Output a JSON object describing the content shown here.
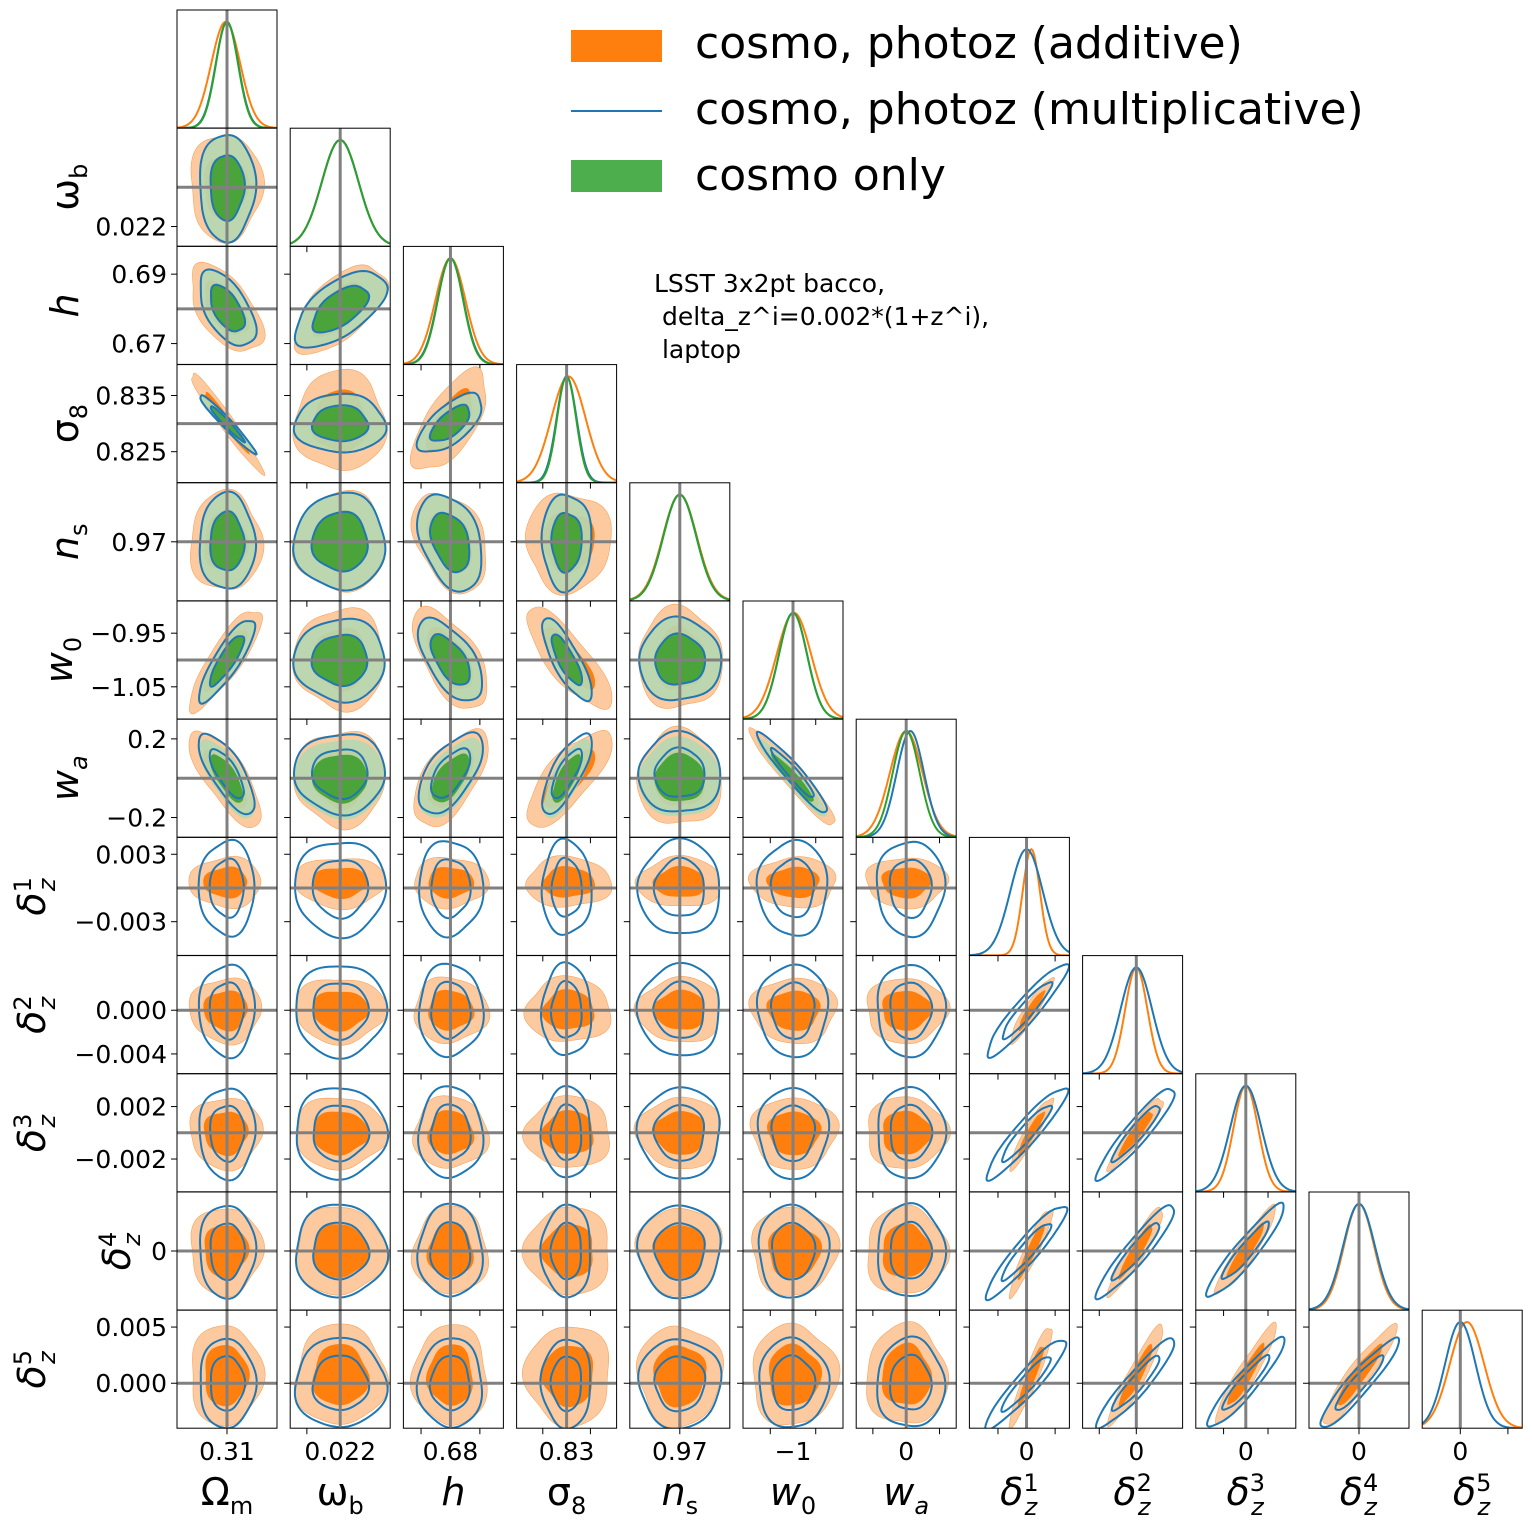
{
  "chart_data": {
    "type": "corner",
    "parameters": [
      {
        "key": "Om",
        "label": "Ω",
        "sub": "m",
        "sup": "",
        "italic": false,
        "truth": 0.31,
        "range": [
          0.29,
          0.33
        ],
        "ticks": [
          0.31
        ],
        "ticklabels": [
          "0.31"
        ],
        "bottom_ticklabel": "0.31"
      },
      {
        "key": "ob",
        "label": "ω",
        "sub": "b",
        "sup": "",
        "italic": false,
        "truth": 0.0224,
        "range": [
          0.0218,
          0.023
        ],
        "ticks": [
          0.022
        ],
        "ticklabels": [
          "0.022"
        ],
        "bottom_ticklabel": "0.022"
      },
      {
        "key": "h",
        "label": "h",
        "sub": "",
        "sup": "",
        "italic": true,
        "truth": 0.68,
        "range": [
          0.664,
          0.698
        ],
        "ticks": [
          0.67,
          0.69
        ],
        "ticklabels": [
          "0.67",
          "0.69"
        ],
        "bottom_ticklabel": "0.68"
      },
      {
        "key": "s8",
        "label": "σ",
        "sub": "8",
        "sup": "",
        "italic": false,
        "truth": 0.83,
        "range": [
          0.8195,
          0.8405
        ],
        "ticks": [
          0.825,
          0.835
        ],
        "ticklabels": [
          "0.825",
          "0.835"
        ],
        "bottom_ticklabel": "0.83"
      },
      {
        "key": "ns",
        "label": "n",
        "sub": "s",
        "sup": "",
        "italic": true,
        "truth": 0.97,
        "range": [
          0.95,
          0.99
        ],
        "ticks": [
          0.97
        ],
        "ticklabels": [
          "0.97"
        ],
        "bottom_ticklabel": "0.97"
      },
      {
        "key": "w0",
        "label": "w",
        "sub": "0",
        "sup": "",
        "italic": true,
        "truth": -1.0,
        "range": [
          -1.11,
          -0.89
        ],
        "ticks": [
          -1.05,
          -0.95
        ],
        "ticklabels": [
          "−1.05",
          "−0.95"
        ],
        "bottom_ticklabel": "−1"
      },
      {
        "key": "wa",
        "label": "w",
        "sub": "a",
        "sup": "",
        "italic": true,
        "truth": 0.0,
        "range": [
          -0.3,
          0.3
        ],
        "ticks": [
          -0.2,
          0.2
        ],
        "ticklabels": [
          "−0.2",
          "0.2"
        ],
        "bottom_ticklabel": "0"
      },
      {
        "key": "dz1",
        "label": "δ",
        "sub": "z",
        "sup": "1",
        "italic": true,
        "truth": 0.0,
        "range": [
          -0.006,
          0.0045
        ],
        "ticks": [
          -0.003,
          0.003
        ],
        "ticklabels": [
          "−0.003",
          "0.003"
        ],
        "bottom_ticklabel": "0"
      },
      {
        "key": "dz2",
        "label": "δ",
        "sub": "z",
        "sup": "2",
        "italic": true,
        "truth": 0.0,
        "range": [
          -0.0058,
          0.005
        ],
        "ticks": [
          -0.004,
          0.0
        ],
        "ticklabels": [
          "−0.004",
          "0.000"
        ],
        "bottom_ticklabel": "0"
      },
      {
        "key": "dz3",
        "label": "δ",
        "sub": "z",
        "sup": "3",
        "italic": true,
        "truth": 0.0,
        "range": [
          -0.0045,
          0.0045
        ],
        "ticks": [
          -0.002,
          0.002
        ],
        "ticklabels": [
          "−0.002",
          "0.002"
        ],
        "bottom_ticklabel": "0"
      },
      {
        "key": "dz4",
        "label": "δ",
        "sub": "z",
        "sup": "4",
        "italic": true,
        "truth": 0.0,
        "range": [
          -0.006,
          0.006
        ],
        "ticks": [
          0.0
        ],
        "ticklabels": [
          "0"
        ],
        "bottom_ticklabel": "0"
      },
      {
        "key": "dz5",
        "label": "δ",
        "sub": "z",
        "sup": "5",
        "italic": true,
        "truth": 0.0,
        "range": [
          -0.004,
          0.0065
        ],
        "ticks": [
          0.0,
          0.005
        ],
        "ticklabels": [
          "0.000",
          "0.005"
        ],
        "bottom_ticklabel": "0"
      }
    ],
    "series": [
      {
        "name": "cosmo, photoz (additive)",
        "style": "filled",
        "color": "#ff7f0e",
        "light_color": "#fdcaa0",
        "sigma": [
          0.0058,
          0.00022,
          0.0051,
          0.0036,
          0.0068,
          0.038,
          0.098,
          0.0009,
          0.0012,
          0.0011,
          0.0018,
          0.0018
        ],
        "offset": [
          -0.0005,
          0.0,
          0.0,
          0.0004,
          0.0,
          0.002,
          0.0,
          0.0005,
          0.0,
          0.0,
          0.0,
          0.0007
        ]
      },
      {
        "name": "cosmo, photoz (multiplicative)",
        "style": "lines",
        "color": "#1f77b4",
        "sigma": [
          0.0045,
          0.00022,
          0.0044,
          0.0021,
          0.0066,
          0.031,
          0.082,
          0.0017,
          0.0017,
          0.0014,
          0.0019,
          0.0016
        ],
        "offset": [
          0.0,
          0.0,
          0.0,
          0.0,
          0.0,
          0.0,
          0.025,
          0.0,
          0.0,
          0.0,
          0.0,
          0.0
        ]
      },
      {
        "name": "cosmo only",
        "style": "filled",
        "color": "#2ca02c",
        "light_color": "#b6d7b0",
        "sigma": [
          0.0044,
          0.00022,
          0.0043,
          0.002,
          0.0066,
          0.031,
          0.081
        ],
        "offset": [
          0.0,
          0.0,
          0.0,
          0.0,
          0.0,
          0.0,
          0.0
        ]
      }
    ],
    "truth_line_color": "#808080",
    "legend": {
      "placement": "top-right"
    },
    "grid": false
  },
  "annotation": {
    "lines": [
      "LSST 3x2pt bacco,",
      " delta_z^i=0.002*(1+z^i),",
      " laptop"
    ]
  }
}
